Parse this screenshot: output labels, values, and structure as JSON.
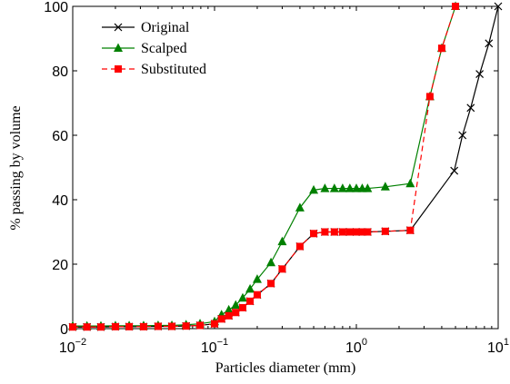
{
  "chart_data": {
    "type": "line",
    "xscale": "log",
    "xlabel": "Particles diameter (mm)",
    "ylabel": "% passing by volume",
    "xlim": [
      0.01,
      10
    ],
    "ylim": [
      0,
      100
    ],
    "xticks": [
      {
        "value": 0.01,
        "label": "10",
        "sup": "−2"
      },
      {
        "value": 0.1,
        "label": "10",
        "sup": "−1"
      },
      {
        "value": 1,
        "label": "10",
        "sup": "0"
      },
      {
        "value": 10,
        "label": "10",
        "sup": "1"
      }
    ],
    "yticks": [
      0,
      20,
      40,
      60,
      80,
      100
    ],
    "legend": "upper left",
    "series": [
      {
        "name": "Original",
        "color": "#000000",
        "marker": "x",
        "dash": false,
        "x": [
          0.01,
          0.0126,
          0.0158,
          0.02,
          0.025,
          0.0316,
          0.04,
          0.05,
          0.063,
          0.079,
          0.1,
          0.112,
          0.126,
          0.141,
          0.158,
          0.178,
          0.2,
          0.25,
          0.3,
          0.4,
          0.5,
          0.6,
          0.7,
          0.8,
          0.9,
          1.0,
          1.1,
          1.2,
          1.6,
          2.4,
          4.9,
          5.6,
          6.4,
          7.4,
          8.6,
          10
        ],
        "values": [
          0.5,
          0.5,
          0.5,
          0.6,
          0.6,
          0.6,
          0.7,
          0.7,
          0.8,
          1.0,
          1.5,
          3,
          4,
          5,
          6.5,
          8.5,
          10.5,
          14,
          18.5,
          25.5,
          29.5,
          30,
          30,
          30,
          30,
          30,
          30,
          30,
          30.2,
          30.5,
          49,
          60,
          68.5,
          79,
          88.5,
          100
        ]
      },
      {
        "name": "Scalped",
        "color": "#008000",
        "marker": "triangle",
        "dash": false,
        "x": [
          0.01,
          0.0126,
          0.0158,
          0.02,
          0.025,
          0.0316,
          0.04,
          0.05,
          0.063,
          0.079,
          0.1,
          0.112,
          0.126,
          0.141,
          0.158,
          0.178,
          0.2,
          0.25,
          0.3,
          0.4,
          0.5,
          0.6,
          0.7,
          0.8,
          0.9,
          1.0,
          1.1,
          1.2,
          1.6,
          2.4,
          3.3,
          4,
          5
        ],
        "values": [
          0.8,
          0.8,
          0.8,
          0.9,
          0.9,
          0.9,
          1.0,
          1.0,
          1.2,
          1.5,
          2.2,
          4.3,
          5.8,
          7.3,
          9.5,
          12.3,
          15.3,
          20.5,
          27,
          37.5,
          43,
          43.5,
          43.5,
          43.5,
          43.5,
          43.5,
          43.5,
          43.5,
          44,
          45,
          72,
          87,
          100
        ]
      },
      {
        "name": "Substituted",
        "color": "#ff0000",
        "marker": "square",
        "dash": true,
        "x": [
          0.01,
          0.0126,
          0.0158,
          0.02,
          0.025,
          0.0316,
          0.04,
          0.05,
          0.063,
          0.079,
          0.1,
          0.112,
          0.126,
          0.141,
          0.158,
          0.178,
          0.2,
          0.25,
          0.3,
          0.4,
          0.5,
          0.6,
          0.7,
          0.8,
          0.9,
          1.0,
          1.1,
          1.2,
          1.6,
          2.4,
          3.3,
          4,
          5
        ],
        "values": [
          0.5,
          0.5,
          0.5,
          0.6,
          0.6,
          0.6,
          0.7,
          0.7,
          0.8,
          1.0,
          1.5,
          3,
          4,
          5,
          6.5,
          8.5,
          10.5,
          14,
          18.5,
          25.5,
          29.5,
          30,
          30,
          30,
          30,
          30,
          30,
          30,
          30.2,
          30.5,
          72,
          87,
          100
        ]
      }
    ]
  }
}
